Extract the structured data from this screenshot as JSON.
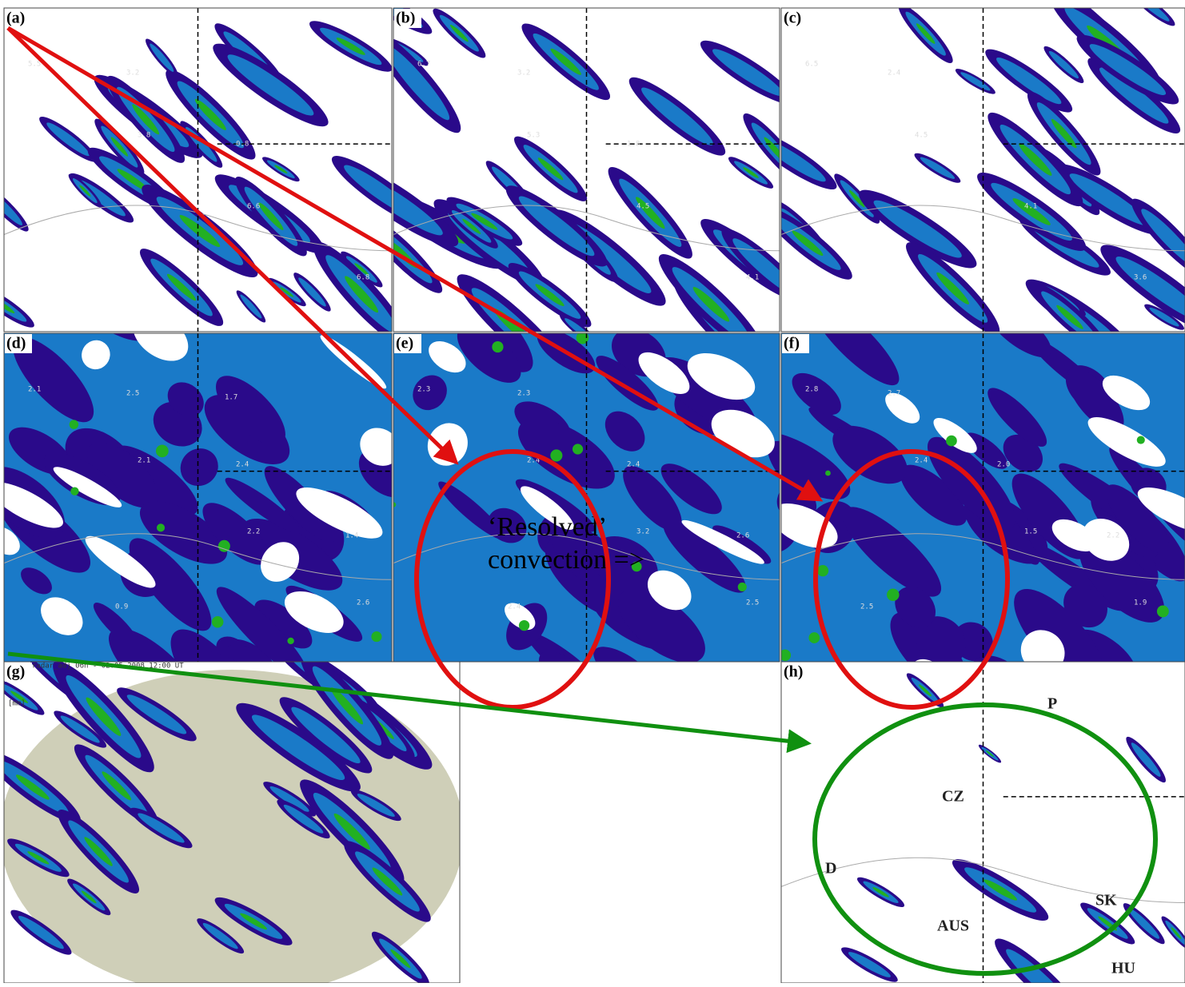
{
  "panels": [
    {
      "label": "(a)",
      "contour_labels": [
        "5.5",
        "3.8",
        "6.6",
        "6.8",
        "3.2",
        "0.8"
      ]
    },
    {
      "label": "(b)",
      "contour_labels": [
        "6.7",
        "5.3",
        "4.5",
        "4.1",
        "3.2",
        "1.8"
      ]
    },
    {
      "label": "(c)",
      "contour_labels": [
        "6.5",
        "4.5",
        "4.1",
        "3.6",
        "2.4"
      ]
    },
    {
      "label": "(d)",
      "contour_labels": [
        "2.1",
        "2.1",
        "2.2",
        "2.6",
        "2.5",
        "2.4",
        "1.4",
        "0.9",
        "1.7"
      ]
    },
    {
      "label": "(e)",
      "contour_labels": [
        "2.3",
        "2.4",
        "3.2",
        "2.5",
        "2.3",
        "2.4",
        "2.6",
        "2.4"
      ]
    },
    {
      "label": "(f)",
      "contour_labels": [
        "2.8",
        "2.4",
        "1.5",
        "1.9",
        "2.7",
        "2.0",
        "2.2",
        "2.5"
      ]
    },
    {
      "label": "(g)",
      "contour_labels": []
    },
    {
      "label": "(h)",
      "contour_labels": []
    }
  ],
  "radar_header": "radar_adj_06h - 02.05.2008 12:00 UT",
  "radar_unit": "[mm]",
  "countries": [
    "P",
    "CZ",
    "D",
    "AUS",
    "SK",
    "HU"
  ],
  "annotation": [
    "‘Resolved’",
    "convection =>"
  ]
}
